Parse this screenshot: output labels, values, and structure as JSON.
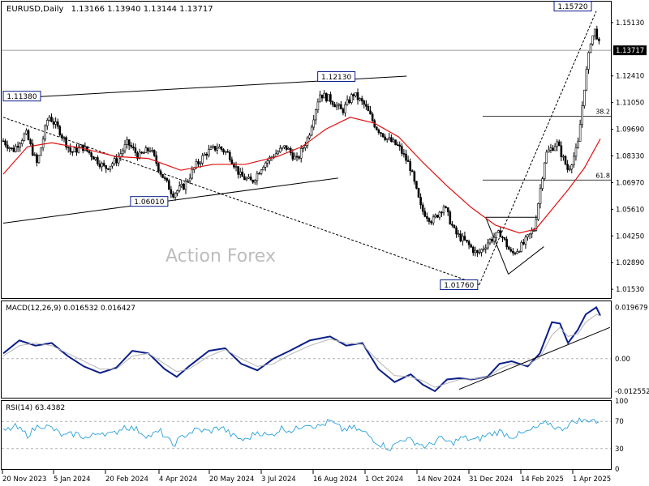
{
  "header": {
    "symbol": "EURUSD,Daily",
    "ohlc": "1.13166 1.13940 1.13144 1.13717"
  },
  "watermark": "Action Forex",
  "colors": {
    "candle": "#000000",
    "ma": "#e01010",
    "macd_main": "#0b1f8a",
    "macd_signal": "#b5b5b5",
    "rsi": "#2aa0d8",
    "grid_dash": "#b0b0b0",
    "price_tag_bg": "#000000",
    "price_tag_fg": "#ffffff",
    "label_border": "#0b1f8a"
  },
  "chart_data": [
    {
      "type": "candlestick",
      "name": "price",
      "ylim": [
        1.0108,
        1.162
      ],
      "y_ticks": [
        "1.15130",
        "1.12410",
        "1.11050",
        "1.09690",
        "1.08330",
        "1.06970",
        "1.05610",
        "1.04250",
        "1.02890",
        "1.01530"
      ],
      "tick_values": [
        1.1513,
        1.1241,
        1.1105,
        1.0969,
        1.0833,
        1.0697,
        1.0561,
        1.0425,
        1.0289,
        1.0153
      ],
      "current_price_label": "1.13717",
      "current_price": 1.13717,
      "x_labels": [
        "20 Nov 2023",
        "5 Jan 2024",
        "20 Feb 2024",
        "4 Apr 2024",
        "20 May 2024",
        "3 Jul 2024",
        "16 Aug 2024",
        "1 Oct 2024",
        "14 Nov 2024",
        "31 Dec 2024",
        "14 Feb 2025",
        "1 Apr 2025"
      ],
      "price_path": [
        [
          0,
          1.091
        ],
        [
          12,
          1.086
        ],
        [
          28,
          1.095
        ],
        [
          42,
          1.079
        ],
        [
          56,
          1.104
        ],
        [
          70,
          1.096
        ],
        [
          84,
          1.085
        ],
        [
          98,
          1.088
        ],
        [
          112,
          1.083
        ],
        [
          126,
          1.077
        ],
        [
          140,
          1.081
        ],
        [
          154,
          1.09
        ],
        [
          168,
          1.083
        ],
        [
          182,
          1.087
        ],
        [
          196,
          1.074
        ],
        [
          210,
          1.064
        ],
        [
          224,
          1.068
        ],
        [
          238,
          1.078
        ],
        [
          252,
          1.085
        ],
        [
          266,
          1.088
        ],
        [
          280,
          1.084
        ],
        [
          294,
          1.073
        ],
        [
          308,
          1.07
        ],
        [
          322,
          1.079
        ],
        [
          336,
          1.084
        ],
        [
          350,
          1.088
        ],
        [
          364,
          1.081
        ],
        [
          378,
          1.093
        ],
        [
          392,
          1.115
        ],
        [
          406,
          1.112
        ],
        [
          420,
          1.106
        ],
        [
          434,
          1.115
        ],
        [
          448,
          1.109
        ],
        [
          462,
          1.098
        ],
        [
          476,
          1.092
        ],
        [
          490,
          1.088
        ],
        [
          504,
          1.078
        ],
        [
          518,
          1.056
        ],
        [
          532,
          1.05
        ],
        [
          546,
          1.058
        ],
        [
          560,
          1.044
        ],
        [
          574,
          1.039
        ],
        [
          588,
          1.033
        ],
        [
          602,
          1.04
        ],
        [
          616,
          1.044
        ],
        [
          630,
          1.033
        ],
        [
          644,
          1.038
        ],
        [
          658,
          1.046
        ],
        [
          672,
          1.084
        ],
        [
          686,
          1.09
        ],
        [
          700,
          1.076
        ],
        [
          712,
          1.088
        ],
        [
          720,
          1.118
        ],
        [
          728,
          1.142
        ],
        [
          734,
          1.148
        ],
        [
          740,
          1.1372
        ]
      ],
      "ma_path": [
        [
          0,
          1.074
        ],
        [
          30,
          1.088
        ],
        [
          60,
          1.09
        ],
        [
          100,
          1.087
        ],
        [
          140,
          1.083
        ],
        [
          180,
          1.082
        ],
        [
          220,
          1.076
        ],
        [
          260,
          1.079
        ],
        [
          300,
          1.079
        ],
        [
          340,
          1.083
        ],
        [
          370,
          1.088
        ],
        [
          400,
          1.097
        ],
        [
          430,
          1.103
        ],
        [
          460,
          1.1
        ],
        [
          490,
          1.093
        ],
        [
          520,
          1.08
        ],
        [
          550,
          1.068
        ],
        [
          580,
          1.057
        ],
        [
          610,
          1.048
        ],
        [
          640,
          1.044
        ],
        [
          660,
          1.046
        ],
        [
          680,
          1.056
        ],
        [
          700,
          1.066
        ],
        [
          720,
          1.077
        ],
        [
          740,
          1.092
        ]
      ],
      "trendlines": [
        {
          "from": [
            0,
            1.1125
          ],
          "to": [
            500,
            1.124
          ],
          "style": "solid"
        },
        {
          "from": [
            0,
            1.049
          ],
          "to": [
            415,
            1.072
          ],
          "style": "solid"
        },
        {
          "from": [
            0,
            1.103
          ],
          "to": [
            590,
            1.0176
          ],
          "style": "dashed"
        },
        {
          "from": [
            590,
            1.0176
          ],
          "to": [
            735,
            1.1572
          ],
          "style": "dashed"
        },
        {
          "from": [
            598,
            1.052
          ],
          "to": [
            662,
            1.052
          ],
          "style": "solid"
        },
        {
          "from": [
            598,
            1.052
          ],
          "to": [
            626,
            1.023
          ],
          "style": "solid"
        },
        {
          "from": [
            626,
            1.023
          ],
          "to": [
            670,
            1.037
          ],
          "style": "solid"
        }
      ],
      "fibonacci": [
        {
          "label": "38.2",
          "value": 1.1035
        },
        {
          "label": "61.8",
          "value": 1.071
        }
      ],
      "annotations": [
        {
          "label": "1.15720",
          "x": 735,
          "value": 1.1572
        },
        {
          "label": "1.12130",
          "x": 438,
          "value": 1.1213
        },
        {
          "label": "1.11380",
          "x": 55,
          "value": 1.1138
        },
        {
          "label": "1.06010",
          "x": 205,
          "value": 1.0601
        },
        {
          "label": "1.01760",
          "x": 590,
          "value": 1.0176
        }
      ]
    },
    {
      "type": "line",
      "name": "macd",
      "title": "MACD(12,26,9) 0.016532 0.016427",
      "ylim": [
        -0.015,
        0.022
      ],
      "y_ticks": [
        "0.019679",
        "0.00",
        "-0.012552"
      ],
      "tick_values": [
        0.019679,
        0.0,
        -0.012552
      ],
      "series": [
        {
          "role": "main",
          "points": [
            [
              0,
              0.002
            ],
            [
              20,
              0.007
            ],
            [
              40,
              0.005
            ],
            [
              60,
              0.006
            ],
            [
              80,
              0.001
            ],
            [
              100,
              -0.003
            ],
            [
              120,
              -0.0055
            ],
            [
              140,
              -0.0035
            ],
            [
              160,
              0.003
            ],
            [
              180,
              0.002
            ],
            [
              200,
              -0.004
            ],
            [
              215,
              -0.007
            ],
            [
              230,
              -0.003
            ],
            [
              255,
              0.003
            ],
            [
              275,
              0.004
            ],
            [
              295,
              -0.002
            ],
            [
              315,
              -0.0045
            ],
            [
              335,
              0.0
            ],
            [
              355,
              0.003
            ],
            [
              380,
              0.007
            ],
            [
              405,
              0.0085
            ],
            [
              425,
              0.005
            ],
            [
              445,
              0.006
            ],
            [
              465,
              -0.004
            ],
            [
              485,
              -0.009
            ],
            [
              505,
              -0.006
            ],
            [
              520,
              -0.01
            ],
            [
              535,
              -0.0125
            ],
            [
              550,
              -0.008
            ],
            [
              565,
              -0.0075
            ],
            [
              580,
              -0.008
            ],
            [
              600,
              -0.007
            ],
            [
              615,
              -0.002
            ],
            [
              630,
              -0.001
            ],
            [
              650,
              -0.003
            ],
            [
              665,
              0.002
            ],
            [
              680,
              0.014
            ],
            [
              690,
              0.0135
            ],
            [
              700,
              0.006
            ],
            [
              712,
              0.011
            ],
            [
              722,
              0.017
            ],
            [
              735,
              0.0197
            ],
            [
              740,
              0.0165
            ]
          ]
        },
        {
          "role": "signal",
          "points": [
            [
              0,
              0.001
            ],
            [
              20,
              0.005
            ],
            [
              40,
              0.006
            ],
            [
              60,
              0.005
            ],
            [
              80,
              0.002
            ],
            [
              100,
              -0.001
            ],
            [
              120,
              -0.004
            ],
            [
              140,
              -0.004
            ],
            [
              160,
              0.001
            ],
            [
              180,
              0.002
            ],
            [
              200,
              -0.002
            ],
            [
              215,
              -0.005
            ],
            [
              230,
              -0.004
            ],
            [
              255,
              0.001
            ],
            [
              275,
              0.0035
            ],
            [
              295,
              0.0
            ],
            [
              315,
              -0.003
            ],
            [
              335,
              -0.002
            ],
            [
              355,
              0.0015
            ],
            [
              380,
              0.005
            ],
            [
              405,
              0.0075
            ],
            [
              425,
              0.006
            ],
            [
              445,
              0.0055
            ],
            [
              465,
              -0.001
            ],
            [
              485,
              -0.0065
            ],
            [
              505,
              -0.007
            ],
            [
              520,
              -0.0085
            ],
            [
              535,
              -0.011
            ],
            [
              550,
              -0.0095
            ],
            [
              565,
              -0.008
            ],
            [
              580,
              -0.0078
            ],
            [
              600,
              -0.0072
            ],
            [
              615,
              -0.004
            ],
            [
              630,
              -0.002
            ],
            [
              650,
              -0.0025
            ],
            [
              665,
              0.0005
            ],
            [
              680,
              0.009
            ],
            [
              690,
              0.012
            ],
            [
              700,
              0.0085
            ],
            [
              712,
              0.0095
            ],
            [
              722,
              0.014
            ],
            [
              735,
              0.017
            ],
            [
              740,
              0.0164
            ]
          ]
        }
      ],
      "trendlines": [
        {
          "from": [
            565,
            -0.0118
          ],
          "to": [
            752,
            0.012
          ]
        }
      ]
    },
    {
      "type": "line",
      "name": "rsi",
      "title": "RSI(14) 63.4382",
      "ylim": [
        0,
        100
      ],
      "y_ticks": [
        "100",
        "70",
        "30",
        "0"
      ],
      "tick_values": [
        100,
        70,
        30,
        0
      ],
      "levels": [
        70,
        30
      ],
      "points": [
        [
          0,
          55
        ],
        [
          15,
          62
        ],
        [
          30,
          50
        ],
        [
          45,
          65
        ],
        [
          60,
          60
        ],
        [
          75,
          48
        ],
        [
          90,
          52
        ],
        [
          105,
          45
        ],
        [
          120,
          55
        ],
        [
          135,
          50
        ],
        [
          150,
          63
        ],
        [
          165,
          58
        ],
        [
          180,
          48
        ],
        [
          195,
          55
        ],
        [
          210,
          35
        ],
        [
          225,
          50
        ],
        [
          240,
          58
        ],
        [
          255,
          55
        ],
        [
          270,
          62
        ],
        [
          285,
          48
        ],
        [
          300,
          42
        ],
        [
          315,
          55
        ],
        [
          330,
          48
        ],
        [
          345,
          60
        ],
        [
          360,
          56
        ],
        [
          375,
          68
        ],
        [
          390,
          62
        ],
        [
          405,
          70
        ],
        [
          420,
          58
        ],
        [
          435,
          60
        ],
        [
          450,
          52
        ],
        [
          465,
          38
        ],
        [
          480,
          30
        ],
        [
          495,
          45
        ],
        [
          510,
          40
        ],
        [
          525,
          32
        ],
        [
          540,
          45
        ],
        [
          555,
          38
        ],
        [
          570,
          46
        ],
        [
          585,
          42
        ],
        [
          600,
          50
        ],
        [
          615,
          55
        ],
        [
          630,
          48
        ],
        [
          645,
          52
        ],
        [
          660,
          60
        ],
        [
          675,
          68
        ],
        [
          690,
          58
        ],
        [
          700,
          65
        ],
        [
          712,
          72
        ],
        [
          722,
          70
        ],
        [
          730,
          75
        ],
        [
          740,
          63
        ]
      ]
    }
  ]
}
